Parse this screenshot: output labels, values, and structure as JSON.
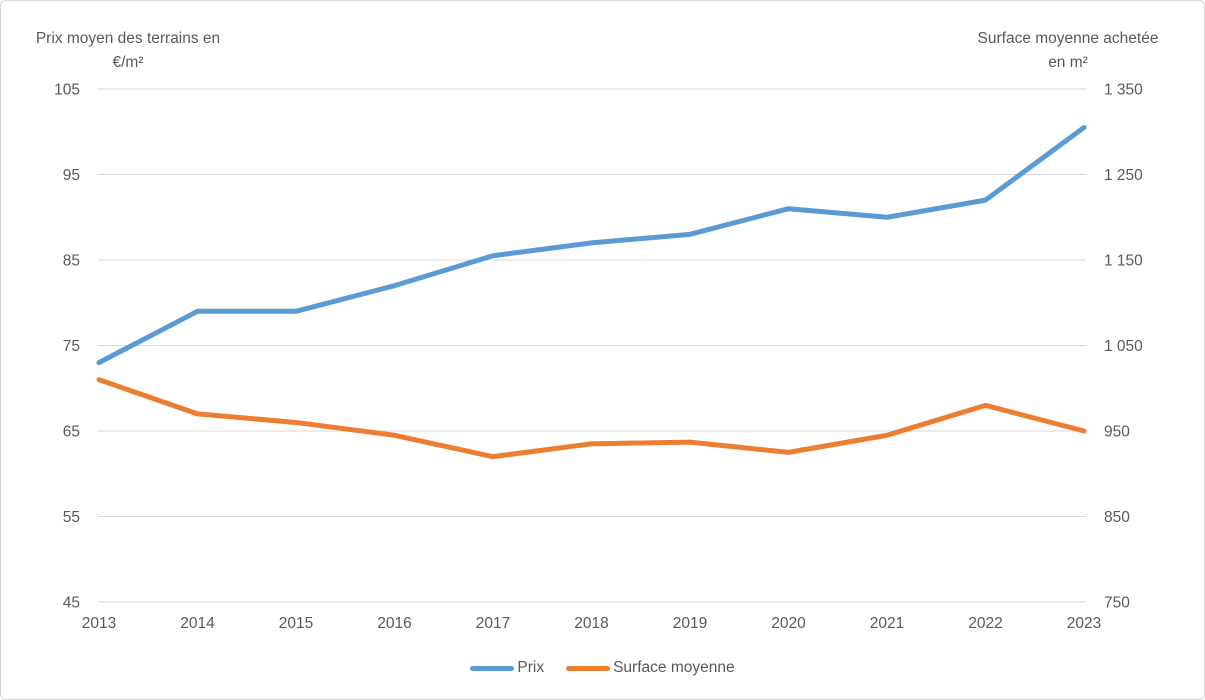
{
  "chart_data": {
    "type": "line",
    "title": "",
    "categories": [
      "2013",
      "2014",
      "2015",
      "2016",
      "2017",
      "2018",
      "2019",
      "2020",
      "2021",
      "2022",
      "2023"
    ],
    "series": [
      {
        "name": "Prix",
        "axis": "left",
        "color": "#5B9BD5",
        "values": [
          73,
          79,
          79,
          82,
          85.5,
          87,
          88,
          91,
          90,
          92,
          100.5
        ]
      },
      {
        "name": "Surface moyenne",
        "axis": "right",
        "color": "#ED7D31",
        "values": [
          1010,
          970,
          960,
          945,
          920,
          935,
          937,
          925,
          945,
          980,
          950
        ]
      }
    ],
    "left_axis": {
      "title_line1": "Prix moyen des terrains en",
      "title_line2": "€/m²",
      "min": 45,
      "max": 105,
      "tick_values": [
        105,
        95,
        85,
        75,
        65,
        55,
        45
      ],
      "tick_labels": [
        "105",
        "95",
        "85",
        "75",
        "65",
        "55",
        "45"
      ]
    },
    "right_axis": {
      "title_line1": "Surface moyenne achetée",
      "title_line2": "en m²",
      "min": 750,
      "max": 1350,
      "tick_values": [
        1350,
        1250,
        1150,
        1050,
        950,
        850,
        750
      ],
      "tick_labels": [
        "1 350",
        "1 250",
        "1 150",
        "1 050",
        "950",
        "850",
        "750"
      ]
    },
    "legend": {
      "position": "bottom",
      "entries": [
        "Prix",
        "Surface moyenne"
      ]
    },
    "grid": "horizontal",
    "colors": {
      "grid": "#D9D9D9",
      "text": "#595959",
      "background": "#FFFFFF",
      "border": "#D6D6D6"
    }
  }
}
